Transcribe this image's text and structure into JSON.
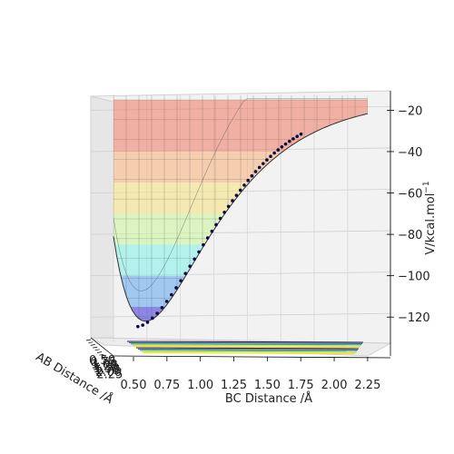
{
  "chart_data": {
    "type": "surface",
    "x_axis": {
      "label": "BC Distance /Å",
      "ticks": [
        "0.50",
        "0.75",
        "1.00",
        "1.25",
        "1.50",
        "1.75",
        "2.00",
        "2.25"
      ],
      "range": [
        0.5,
        2.4
      ]
    },
    "y_axis": {
      "label": "AB Distance /Å",
      "ticks": [
        "0.50",
        "0.75",
        "1.00",
        "1.25",
        "1.50",
        "1.75",
        "2.00",
        "2.25"
      ],
      "range": [
        0.5,
        2.4
      ]
    },
    "z_axis": {
      "label": "V/kcal.mol",
      "label_superscript": "−1",
      "ticks": [
        "−20",
        "−40",
        "−60",
        "−80",
        "−100",
        "−120"
      ],
      "tick_values": [
        -20,
        -40,
        -60,
        -80,
        -100,
        -120
      ],
      "range": [
        -130,
        -15
      ]
    },
    "colormap": [
      "#3b2fd6",
      "#5fa6f0",
      "#7ff2e8",
      "#c8f59a",
      "#f6e27a",
      "#f7b07a",
      "#ef7a62"
    ],
    "trajectory_color": "#0a0a40",
    "contour_colormap": [
      "#3b1a5a",
      "#2f6f8e",
      "#38a87a",
      "#d7e23a",
      "#f7e31a"
    ],
    "grid": true,
    "view": "front, low elevation"
  }
}
